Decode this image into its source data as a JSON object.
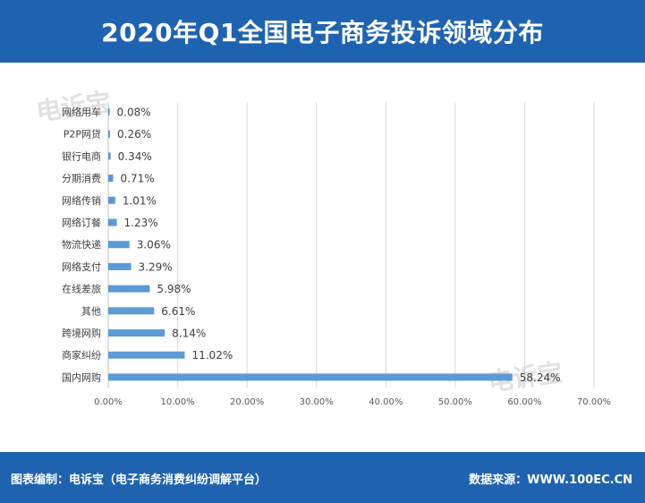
{
  "header": {
    "title": "2020年Q1全国电子商务投诉领域分布"
  },
  "footer": {
    "left_text": "图表编制：电诉宝（电子商务消费纠纷调解平台）",
    "right_text": "数据来源：WWW.100EC.CN"
  },
  "watermark": {
    "text": "电诉宝"
  },
  "colors": {
    "brand": "#1f63b0",
    "bar": "#5b9bd5",
    "grid": "#d9d9d9"
  },
  "chart_data": {
    "type": "bar",
    "orientation": "horizontal",
    "categories": [
      "网络用车",
      "P2P网贷",
      "银行电商",
      "分期消费",
      "网络传销",
      "网络订餐",
      "物流快递",
      "网络支付",
      "在线差旅",
      "其他",
      "跨境网购",
      "商家纠纷",
      "国内网购"
    ],
    "values": [
      0.08,
      0.26,
      0.34,
      0.71,
      1.01,
      1.23,
      3.06,
      3.29,
      5.98,
      6.61,
      8.14,
      11.02,
      58.24
    ],
    "value_labels": [
      "0.08%",
      "0.26%",
      "0.34%",
      "0.71%",
      "1.01%",
      "1.23%",
      "3.06%",
      "3.29%",
      "5.98%",
      "6.61%",
      "8.14%",
      "11.02%",
      "58.24%"
    ],
    "xticks": [
      "0.00%",
      "10.00%",
      "20.00%",
      "30.00%",
      "40.00%",
      "50.00%",
      "60.00%",
      "70.00%"
    ],
    "xlim": [
      0,
      70
    ],
    "title": "2020年Q1全国电子商务投诉领域分布",
    "xlabel": "",
    "ylabel": "",
    "grid": true,
    "legend": "none"
  }
}
